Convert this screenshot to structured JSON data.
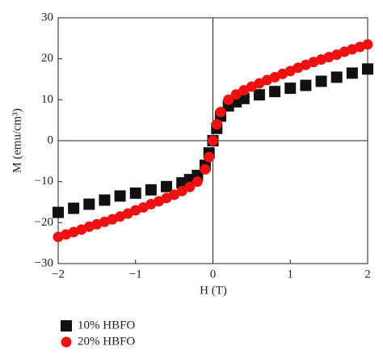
{
  "chart_data": {
    "type": "scatter",
    "x_label": "H (T)",
    "y_label": "M (emu/cm³)",
    "xlim": [
      -2,
      2
    ],
    "xticks": [
      {
        "value": -2,
        "label": "−2"
      },
      {
        "value": -1,
        "label": "−1"
      },
      0,
      1,
      2
    ],
    "ylim": [
      -30,
      30
    ],
    "yticks": [
      {
        "value": -30,
        "label": "−30"
      },
      {
        "value": -20,
        "label": "−20"
      },
      {
        "value": -10,
        "label": "−10"
      },
      0,
      10,
      20,
      30
    ],
    "series": [
      {
        "name": "10% HBFO",
        "color": "#111111",
        "marker": "square",
        "x": [
          -2,
          -1.8,
          -1.6,
          -1.4,
          -1.2,
          -1,
          -0.8,
          -0.6,
          -0.4,
          -0.3,
          -0.2,
          -0.1,
          -0.05,
          0,
          0.05,
          0.1,
          0.2,
          0.3,
          0.4,
          0.6,
          0.8,
          1,
          1.2,
          1.4,
          1.6,
          1.8,
          2
        ],
        "values": [
          -17.5,
          -16.5,
          -15.5,
          -14.5,
          -13.5,
          -12.8,
          -12,
          -11.2,
          -10.3,
          -9.5,
          -8.5,
          -6,
          -3,
          0,
          3,
          6,
          8.5,
          9.5,
          10.3,
          11.2,
          12,
          12.8,
          13.5,
          14.5,
          15.5,
          16.5,
          17.5
        ]
      },
      {
        "name": "20% HBFO",
        "color": "#ee1111",
        "marker": "circle",
        "x": [
          -2,
          -1.9,
          -1.8,
          -1.7,
          -1.6,
          -1.5,
          -1.4,
          -1.3,
          -1.2,
          -1.1,
          -1,
          -0.9,
          -0.8,
          -0.7,
          -0.6,
          -0.5,
          -0.4,
          -0.3,
          -0.2,
          -0.1,
          -0.05,
          0,
          0.05,
          0.1,
          0.2,
          0.3,
          0.4,
          0.5,
          0.6,
          0.7,
          0.8,
          0.9,
          1,
          1.1,
          1.2,
          1.3,
          1.4,
          1.5,
          1.6,
          1.7,
          1.8,
          1.9,
          2
        ],
        "values": [
          -23.5,
          -22.9,
          -22.3,
          -21.7,
          -21,
          -20.4,
          -19.8,
          -19.2,
          -18.5,
          -17.8,
          -17,
          -16.3,
          -15.5,
          -14.8,
          -14,
          -13.2,
          -12.3,
          -11.3,
          -10,
          -7,
          -4,
          0,
          4,
          7,
          10,
          11.3,
          12.3,
          13.2,
          14,
          14.8,
          15.5,
          16.3,
          17,
          17.8,
          18.5,
          19.2,
          19.8,
          20.4,
          21,
          21.7,
          22.3,
          22.9,
          23.5
        ]
      }
    ]
  }
}
